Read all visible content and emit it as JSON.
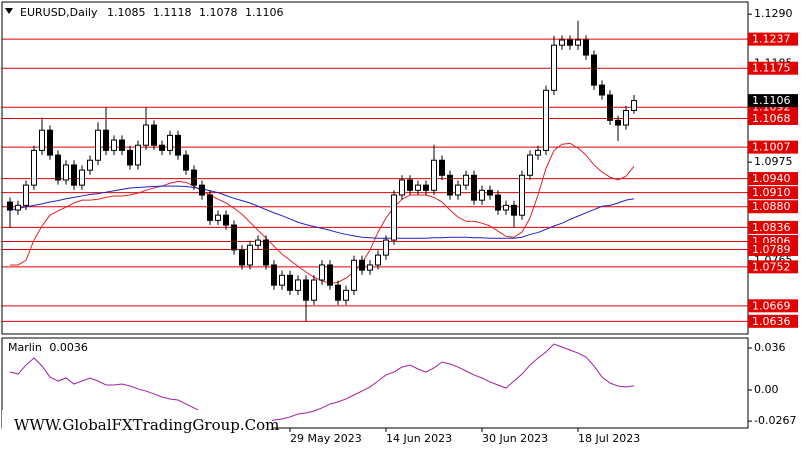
{
  "chart_data": {
    "type": "candlestick",
    "title": "EURUSD,Daily",
    "watermark": "WWW.GlobalFXTradingGroup.Com",
    "categories": [
      null,
      null,
      null,
      null,
      null,
      null,
      null,
      null,
      null,
      null,
      null,
      null,
      null,
      null,
      null,
      null,
      null,
      null,
      null,
      null,
      null,
      null,
      null,
      null,
      null,
      null,
      null,
      null,
      null,
      null,
      null,
      null,
      null,
      null,
      null,
      "29 May 2023",
      null,
      null,
      null,
      null,
      null,
      null,
      null,
      null,
      null,
      null,
      null,
      "14 Jun 2023",
      null,
      null,
      null,
      null,
      null,
      null,
      null,
      null,
      null,
      null,
      null,
      "30 Jun 2023",
      null,
      null,
      null,
      null,
      null,
      null,
      null,
      null,
      null,
      null,
      null,
      "18 Jul 2023",
      null,
      null,
      null,
      null,
      null,
      null,
      null
    ],
    "open": [
      1.089,
      1.0873,
      1.0883,
      1.0926,
      1.1,
      1.1043,
      1.099,
      1.0937,
      1.0969,
      1.0926,
      1.0958,
      1.0979,
      1.1043,
      1.1,
      1.1022,
      1.1,
      1.0969,
      1.1011,
      1.1054,
      1.1011,
      1.1,
      1.1032,
      1.099,
      1.0958,
      1.0926,
      1.0905,
      1.0851,
      1.0862,
      1.0841,
      1.0788,
      1.0756,
      1.0798,
      1.0809,
      1.0756,
      1.0713,
      1.0734,
      1.0702,
      1.0724,
      1.0681,
      1.0724,
      1.0756,
      1.0713,
      1.0681,
      1.0702,
      1.0766,
      1.0745,
      1.0756,
      1.0777,
      1.0809,
      1.0905,
      1.0937,
      1.0915,
      1.0926,
      1.0915,
      1.0979,
      1.0947,
      1.0905,
      1.0926,
      1.0947,
      1.0894,
      1.0915,
      1.0905,
      1.0873,
      1.0883,
      1.0862,
      1.0947,
      1.099,
      1.1,
      1.1128,
      1.1224,
      1.1235,
      1.1224,
      1.1235,
      1.1203,
      1.1139,
      1.1118,
      1.1064,
      1.1054,
      1.1085
    ],
    "high": [
      1.09,
      1.0893,
      1.0936,
      1.101,
      1.107,
      1.1053,
      1.1,
      1.0979,
      1.0979,
      1.0968,
      1.0989,
      1.106,
      1.1092,
      1.1032,
      1.1032,
      1.101,
      1.1021,
      1.1092,
      1.1064,
      1.1021,
      1.1042,
      1.1042,
      1.1,
      1.0968,
      1.0936,
      1.0915,
      1.0872,
      1.0872,
      1.0851,
      1.0798,
      1.0808,
      1.0819,
      1.0819,
      1.0766,
      1.0744,
      1.0744,
      1.0734,
      1.0734,
      1.0734,
      1.0766,
      1.0766,
      1.0723,
      1.0712,
      1.0776,
      1.0776,
      1.0766,
      1.0787,
      1.0819,
      1.0915,
      1.0947,
      1.0947,
      1.0936,
      1.0936,
      1.1012,
      1.0989,
      1.0957,
      1.0936,
      1.0957,
      1.0957,
      1.0925,
      1.0925,
      1.0915,
      1.0893,
      1.0893,
      1.0957,
      1.1,
      1.101,
      1.1138,
      1.1244,
      1.1245,
      1.1245,
      1.1276,
      1.1245,
      1.1213,
      1.1149,
      1.1128,
      1.1074,
      1.1095,
      1.1118
    ],
    "low": [
      1.0835,
      1.0863,
      1.0873,
      1.0916,
      1.099,
      1.098,
      1.0927,
      1.0927,
      1.0916,
      1.0916,
      1.0948,
      1.0969,
      1.099,
      1.099,
      1.099,
      1.0959,
      1.0959,
      1.1001,
      1.1001,
      1.099,
      1.099,
      1.098,
      1.0948,
      1.0916,
      1.0895,
      1.0841,
      1.0841,
      1.0831,
      1.0778,
      1.0746,
      1.0746,
      1.0788,
      1.0746,
      1.0703,
      1.0703,
      1.0692,
      1.0692,
      1.0636,
      1.0671,
      1.0714,
      1.0703,
      1.0671,
      1.0671,
      1.0692,
      1.0735,
      1.0735,
      1.0746,
      1.0767,
      1.0799,
      1.0895,
      1.0905,
      1.0905,
      1.0905,
      1.0905,
      1.0937,
      1.0895,
      1.0895,
      1.0916,
      1.0884,
      1.0884,
      1.0895,
      1.0863,
      1.0863,
      1.0836,
      1.0852,
      1.0937,
      1.098,
      1.099,
      1.1118,
      1.1214,
      1.1214,
      1.1214,
      1.1193,
      1.1129,
      1.1108,
      1.1054,
      1.102,
      1.1044,
      1.1078
    ],
    "close": [
      1.0873,
      1.0883,
      1.0926,
      1.1,
      1.1043,
      1.099,
      1.0937,
      1.0969,
      1.0926,
      1.0958,
      1.0979,
      1.1043,
      1.1,
      1.1022,
      1.1,
      1.0969,
      1.1011,
      1.1054,
      1.1011,
      1.1,
      1.1032,
      1.099,
      1.0958,
      1.0926,
      1.0905,
      1.0851,
      1.0862,
      1.0841,
      1.0788,
      1.0756,
      1.0798,
      1.0809,
      1.0756,
      1.0713,
      1.0734,
      1.0702,
      1.0724,
      1.0681,
      1.0724,
      1.0756,
      1.0713,
      1.0681,
      1.0702,
      1.0766,
      1.0745,
      1.0756,
      1.0777,
      1.0809,
      1.0905,
      1.0937,
      1.0915,
      1.0926,
      1.0915,
      1.0979,
      1.0947,
      1.0905,
      1.0926,
      1.0947,
      1.0894,
      1.0915,
      1.0905,
      1.0873,
      1.0883,
      1.0862,
      1.0947,
      1.099,
      1.1,
      1.1128,
      1.1224,
      1.1235,
      1.1224,
      1.1235,
      1.1203,
      1.1139,
      1.1118,
      1.1064,
      1.1054,
      1.1085,
      1.1106
    ],
    "up_color": "#ffffff",
    "down_color": "#000000",
    "lines": [
      {
        "color": "#e0202a",
        "values": [
          1.0756,
          1.0756,
          1.0766,
          1.0809,
          1.0839,
          1.0862,
          1.0871,
          1.0879,
          1.0888,
          1.0894,
          1.0894,
          1.0896,
          1.09,
          1.0903,
          1.0903,
          1.0905,
          1.0909,
          1.0915,
          1.092,
          1.0924,
          1.093,
          1.0934,
          1.0932,
          1.0924,
          1.0913,
          1.0905,
          1.0896,
          1.0888,
          1.0877,
          1.0864,
          1.0847,
          1.083,
          1.0813,
          1.0796,
          1.0779,
          1.0766,
          1.0753,
          1.0741,
          1.073,
          1.0722,
          1.0717,
          1.0719,
          1.0728,
          1.0741,
          1.076,
          1.0788,
          1.0826,
          1.0856,
          1.0879,
          1.0896,
          1.0905,
          1.0905,
          1.0905,
          1.09,
          1.089,
          1.0873,
          1.0858,
          1.0849,
          1.0849,
          1.0845,
          1.0839,
          1.0828,
          1.0817,
          1.0815,
          1.0826,
          1.0856,
          1.0905,
          1.0962,
          1.1,
          1.1013,
          1.1015,
          1.1005,
          1.099,
          1.0969,
          1.0954,
          1.0943,
          1.0937,
          1.0945,
          1.0966
        ]
      },
      {
        "color": "#2020c0",
        "values": [
          1.0873,
          1.0876,
          1.088,
          1.0883,
          1.0886,
          1.089,
          1.0893,
          1.0897,
          1.09,
          1.0903,
          1.0906,
          1.0908,
          1.0911,
          1.0914,
          1.0917,
          1.092,
          1.0921,
          1.0922,
          1.0923,
          1.0924,
          1.0924,
          1.0924,
          1.0923,
          1.0921,
          1.0918,
          1.0914,
          1.091,
          1.0904,
          1.0898,
          1.0893,
          1.0888,
          1.0881,
          1.0874,
          1.0867,
          1.0861,
          1.0854,
          1.0847,
          1.0842,
          1.0838,
          1.0834,
          1.083,
          1.0825,
          1.0821,
          1.0818,
          1.0815,
          1.0814,
          1.0813,
          1.0813,
          1.0813,
          1.0813,
          1.0813,
          1.0813,
          1.0813,
          1.0814,
          1.0814,
          1.0815,
          1.0815,
          1.0815,
          1.0814,
          1.0814,
          1.0813,
          1.0813,
          1.0813,
          1.0813,
          1.0815,
          1.0821,
          1.0825,
          1.0832,
          1.0839,
          1.0845,
          1.0853,
          1.086,
          1.0867,
          1.0874,
          1.0881,
          1.0883,
          1.0888,
          1.0894,
          1.0897
        ]
      }
    ],
    "ylim": [
      1.0609,
      1.1316
    ],
    "yticks": [
      {
        "value": 1.129,
        "label": "1.1290"
      },
      1.1185,
      1.0975,
      1.0765
    ],
    "levels": [
      1.1237,
      1.1175,
      1.1092,
      1.1068,
      1.1007,
      {
        "value": 1.094,
        "label": "1.0940"
      },
      {
        "value": 1.091,
        "label": "1.0910"
      },
      {
        "value": 1.088,
        "label": "1.0880"
      },
      1.0836,
      1.0806,
      1.0789,
      1.0752,
      1.0669,
      1.0636
    ],
    "level_color": "#e00000",
    "level_text_color": "#ffffff",
    "indicator": {
      "name": "Marlin",
      "color": "#a020a0",
      "values": [
        0.0154,
        0.0137,
        0.0214,
        0.0274,
        0.0206,
        0.0111,
        0.0077,
        0.0103,
        0.0051,
        0.0077,
        0.0103,
        0.0077,
        0.0043,
        0.0043,
        0.0051,
        0.0034,
        0.0009,
        -0.0009,
        -0.0034,
        -0.006,
        -0.0077,
        -0.0086,
        -0.012,
        -0.0154,
        -0.0189,
        -0.0223,
        -0.0257,
        -0.0283,
        -0.03,
        -0.0309,
        -0.03,
        -0.0291,
        -0.0274,
        -0.0257,
        -0.0249,
        -0.0231,
        -0.0206,
        -0.0197,
        -0.018,
        -0.0154,
        -0.012,
        -0.0103,
        -0.0077,
        -0.0043,
        -0.0009,
        0.0026,
        0.0077,
        0.0129,
        0.0154,
        0.0197,
        0.0214,
        0.018,
        0.0154,
        0.0189,
        0.024,
        0.0223,
        0.0197,
        0.0163,
        0.0129,
        0.0103,
        0.0069,
        0.0043,
        0.0017,
        0.0077,
        0.0137,
        0.0214,
        0.0274,
        0.0326,
        0.0394,
        0.0369,
        0.0343,
        0.0317,
        0.0283,
        0.0206,
        0.0111,
        0.006,
        0.0034,
        0.0026,
        0.0036
      ],
      "ylim": [
        -0.0326,
        0.0446
      ],
      "yticks": [
        0.036,
        {
          "value": 0,
          "label": "0.00"
        },
        -0.0267
      ]
    }
  }
}
